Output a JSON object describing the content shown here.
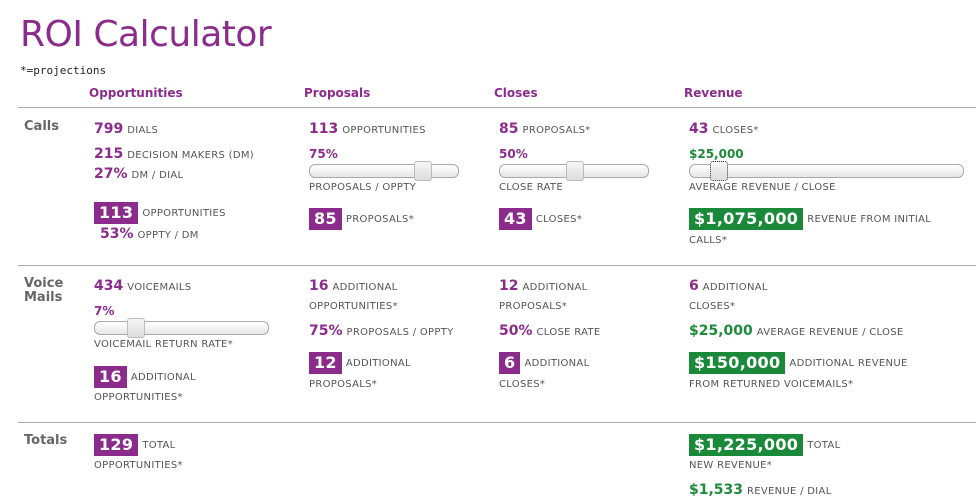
{
  "title": "ROI Calculator",
  "note": "*=projections",
  "columns": [
    "Opportunities",
    "Proposals",
    "Closes",
    "Revenue"
  ],
  "colors": {
    "purple": "#8b2c8c",
    "green": "#1a8a3a"
  },
  "calls": {
    "label": "Calls",
    "dials": "799",
    "dials_label": "DIALS",
    "dm": "215",
    "dm_label": "DECISION MAKERS (DM)",
    "dm_rate": "27%",
    "dm_rate_label": "DM / DIAL",
    "opportunities": "113",
    "opportunities_label": "OPPORTUNITIES",
    "oppty_rate": "53%",
    "oppty_rate_label": "OPPTY / DM",
    "prop_opps": "113",
    "prop_opps_label": "OPPORTUNITIES",
    "prop_rate": "75%",
    "prop_rate_value": 0.75,
    "prop_rate_label": "PROPOSALS / OPPTY",
    "proposals": "85",
    "proposals_label": "PROPOSALS*",
    "close_props": "85",
    "close_props_label": "PROPOSALS*",
    "close_rate": "50%",
    "close_rate_value": 0.5,
    "close_rate_label": "CLOSE RATE",
    "closes": "43",
    "closes_label": "CLOSES*",
    "rev_closes": "43",
    "rev_closes_label": "CLOSES*",
    "avg_rev": "$25,000",
    "avg_rev_label": "AVERAGE REVENUE / CLOSE",
    "revenue": "$1,075,000",
    "revenue_label_1": "REVENUE FROM INITIAL",
    "revenue_label_2": "CALLS*"
  },
  "voicemails": {
    "label_1": "Voice",
    "label_2": "Mails",
    "count": "434",
    "count_label": "VOICEMAILS",
    "return_rate": "7%",
    "return_rate_value": 0.07,
    "return_rate_label": "VOICEMAIL RETURN RATE*",
    "opportunities": "16",
    "opportunities_label_1": "ADDITIONAL",
    "opportunities_label_2": "OPPORTUNITIES*",
    "prop_opps": "16",
    "prop_opps_label_1": "ADDITIONAL",
    "prop_opps_label_2": "OPPORTUNITIES*",
    "prop_rate": "75%",
    "prop_rate_label": "PROPOSALS / OPPTY",
    "proposals": "12",
    "proposals_label_1": "ADDITIONAL",
    "proposals_label_2": "PROPOSALS*",
    "close_props": "12",
    "close_props_label_1": "ADDITIONAL",
    "close_props_label_2": "PROPOSALS*",
    "close_rate": "50%",
    "close_rate_label": "CLOSE RATE",
    "closes": "6",
    "closes_label_1": "ADDITIONAL",
    "closes_label_2": "CLOSES*",
    "rev_closes": "6",
    "rev_closes_label_1": "ADDITIONAL",
    "rev_closes_label_2": "CLOSES*",
    "avg_rev": "$25,000",
    "avg_rev_label": "AVERAGE REVENUE / CLOSE",
    "revenue": "$150,000",
    "revenue_label_1": "ADDITIONAL REVENUE",
    "revenue_label_2": "FROM RETURNED VOICEMAILS*"
  },
  "totals": {
    "label": "Totals",
    "opportunities": "129",
    "opportunities_label_1": "TOTAL",
    "opportunities_label_2": "OPPORTUNITIES*",
    "revenue": "$1,225,000",
    "revenue_label_1": "TOTAL",
    "revenue_label_2": "NEW REVENUE*",
    "rev_per_dial": "$1,533",
    "rev_per_dial_label": "REVENUE / DIAL"
  }
}
